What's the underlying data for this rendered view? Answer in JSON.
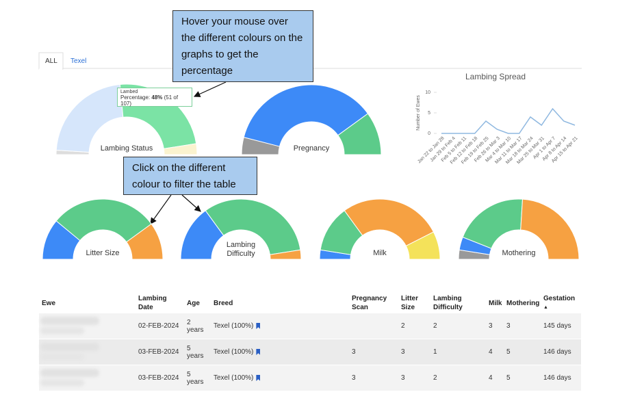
{
  "tabs": [
    "ALL",
    "Texel"
  ],
  "callouts": [
    "Hover your mouse over the different colours on the graphs to get the percentage",
    "Click on the different colour to filter the table"
  ],
  "tooltip": {
    "label": "Lambed",
    "key": "Percentage:",
    "value": "48%",
    "count": "(51 of 107)"
  },
  "chart_data": [
    {
      "type": "line",
      "title": "Lambing Spread",
      "y_label": "Number of Ewes",
      "color": "#8fb8e0",
      "categories": [
        "Jan 22 to Jan 28",
        "Jan 29 to Feb 4",
        "Feb 5 to Feb 11",
        "Feb 12 to Feb 18",
        "Feb 19 to Feb 25",
        "Feb 26 to Mar 3",
        "Mar 4 to Mar 10",
        "Mar 11 to Mar 17",
        "Mar 18 to Mar 24",
        "Mar 25 to Mar 31",
        "Apr 1 to Apr 7",
        "Apr 8 to Apr 14",
        "Apr 15 to Apr 21"
      ],
      "values": [
        0,
        0,
        0,
        0,
        3,
        1,
        0,
        0,
        4,
        2,
        6,
        3,
        2
      ],
      "ylim": [
        0,
        10
      ],
      "yticks": [
        0,
        5,
        10
      ]
    },
    {
      "type": "semi-donut",
      "title": "Lambing Status",
      "values": [
        2,
        45,
        48,
        5
      ],
      "colors": [
        "#dddddd",
        "#d6e6fb",
        "#7be3a5",
        "#fbf3cf"
      ]
    },
    {
      "type": "semi-donut",
      "title": "Pregnancy",
      "values": [
        8,
        72,
        20
      ],
      "colors": [
        "#999999",
        "#3d8af7",
        "#5ccb8a"
      ]
    },
    {
      "type": "semi-donut",
      "title": "Litter Size",
      "values": [
        22,
        58,
        20
      ],
      "colors": [
        "#3d8af7",
        "#5ccb8a",
        "#f6a142"
      ]
    },
    {
      "type": "semi-donut",
      "title": "Lambing Difficulty",
      "values": [
        30,
        65,
        5
      ],
      "colors": [
        "#3d8af7",
        "#5ccb8a",
        "#f6a142"
      ]
    },
    {
      "type": "semi-donut",
      "title": "Milk",
      "values": [
        5,
        25,
        55,
        15
      ],
      "colors": [
        "#3d8af7",
        "#5ccb8a",
        "#f6a142",
        "#f4e25a"
      ]
    },
    {
      "type": "semi-donut",
      "title": "Mothering",
      "values": [
        5,
        7,
        40,
        48
      ],
      "colors": [
        "#999999",
        "#3d8af7",
        "#5ccb8a",
        "#f6a142"
      ]
    }
  ],
  "table": {
    "columns": [
      "Ewe",
      "Lambing Date",
      "Age",
      "Breed",
      "Pregnancy Scan",
      "Litter Size",
      "Lambing Difficulty",
      "Milk",
      "Mothering",
      "Gestation"
    ],
    "sort_indicator": "▲",
    "rows": [
      [
        null,
        "02-FEB-2024",
        "2 years",
        "Texel (100%)",
        null,
        "2",
        "2",
        "3",
        "3",
        "145 days"
      ],
      [
        null,
        "03-FEB-2024",
        "5 years",
        "Texel (100%)",
        "3",
        "3",
        "1",
        "4",
        "5",
        "146 days"
      ],
      [
        null,
        "03-FEB-2024",
        "5 years",
        "Texel (100%)",
        "3",
        "3",
        "2",
        "4",
        "5",
        "146 days"
      ]
    ]
  }
}
